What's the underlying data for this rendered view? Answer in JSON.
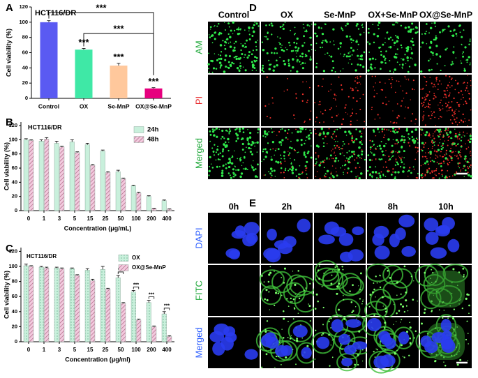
{
  "chart_data": [
    {
      "type": "bar",
      "panel_label": "A",
      "title": "HCT116/DR",
      "ylabel": "Cell viability (%)",
      "categories": [
        "Control",
        "OX",
        "Se-MnP",
        "OX@Se-MnP"
      ],
      "values": [
        100,
        64,
        43,
        13
      ],
      "errors": [
        2,
        1.5,
        3,
        1
      ],
      "colors": [
        "#5a5af2",
        "#3fe8a6",
        "#ffc89c",
        "#e6007e"
      ],
      "ylim": [
        0,
        120
      ],
      "yticks": [
        0,
        20,
        40,
        60,
        80,
        100,
        120
      ],
      "significance": [
        null,
        "***",
        "***",
        "***"
      ],
      "comparisons": [
        {
          "from": "Control",
          "to": "OX@Se-MnP",
          "label": "***"
        },
        {
          "from": "OX",
          "to": "OX@Se-MnP",
          "label": "***"
        }
      ]
    },
    {
      "type": "bar",
      "panel_label": "B",
      "title": "HCT116/DR",
      "xlabel": "Concentration (μg/mL)",
      "ylabel": "Cell viability (%)",
      "categories": [
        "0",
        "1",
        "3",
        "5",
        "15",
        "25",
        "50",
        "100",
        "200",
        "400"
      ],
      "series": [
        {
          "name": "24h",
          "color": "#c9f0dc",
          "pattern": "solid",
          "values": [
            100,
            98,
            95,
            97,
            93,
            84,
            55,
            35,
            20,
            14
          ],
          "errors": [
            1.5,
            2,
            3,
            3,
            2,
            1.5,
            2,
            1,
            1,
            1
          ]
        },
        {
          "name": "48h",
          "color": "#f2cade",
          "pattern": "hatch",
          "values": [
            99,
            101,
            90,
            82,
            64,
            54,
            45,
            25,
            3,
            2
          ],
          "errors": [
            1,
            2,
            1,
            1,
            1,
            1,
            1,
            1,
            0.5,
            0.5
          ]
        }
      ],
      "ylim": [
        0,
        125
      ],
      "yticks": [
        0,
        20,
        40,
        60,
        80,
        100,
        120
      ],
      "legend": "upper right"
    },
    {
      "type": "bar",
      "panel_label": "C",
      "title": "HCT116/DR",
      "xlabel": "Concentration (μg/ml)",
      "ylabel": "Cell viability (%)",
      "categories": [
        "0",
        "1",
        "3",
        "5",
        "15",
        "25",
        "50",
        "100",
        "200",
        "400"
      ],
      "series": [
        {
          "name": "OX",
          "color": "#c9f0dc",
          "pattern": "dots",
          "values": [
            101,
            99,
            98,
            97,
            95,
            96,
            85,
            66,
            52,
            37
          ],
          "errors": [
            2,
            1,
            1,
            1,
            2,
            4,
            3,
            2,
            3,
            3
          ]
        },
        {
          "name": "OX@Se-MnP",
          "color": "#f2cade",
          "pattern": "hatch",
          "values": [
            100,
            98,
            97,
            88,
            81,
            70,
            51,
            29,
            20,
            7
          ],
          "errors": [
            1,
            1,
            1,
            1,
            2,
            1,
            1,
            1,
            1,
            1
          ]
        }
      ],
      "ylim": [
        0,
        125
      ],
      "yticks": [
        0,
        20,
        40,
        60,
        80,
        100,
        120
      ],
      "legend": "upper right",
      "significance": [
        null,
        null,
        null,
        null,
        null,
        null,
        "***",
        "***",
        "***",
        "***"
      ]
    }
  ],
  "image_panels": [
    {
      "panel_label": "D",
      "columns": [
        "Control",
        "OX",
        "Se-MnP",
        "OX+Se-MnP",
        "OX@Se-MnP"
      ],
      "rows": [
        {
          "label": "AM",
          "color": "#1fa83a"
        },
        {
          "label": "PI",
          "color": "#e8282a"
        },
        {
          "label": "Merged",
          "color": "#1fa83a"
        }
      ]
    },
    {
      "panel_label": "E",
      "columns": [
        "0h",
        "2h",
        "4h",
        "8h",
        "10h"
      ],
      "rows": [
        {
          "label": "DAPI",
          "color": "#2a5cff"
        },
        {
          "label": "FITC",
          "color": "#1fa83a"
        },
        {
          "label": "Merged",
          "color": "#2a5cff"
        }
      ]
    }
  ]
}
